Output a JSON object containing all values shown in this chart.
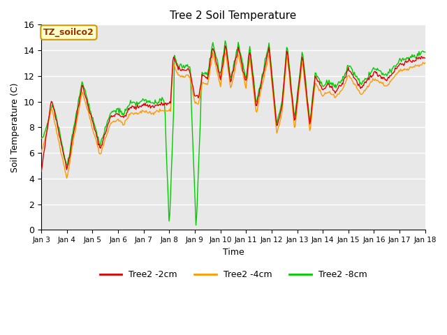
{
  "title": "Tree 2 Soil Temperature",
  "xlabel": "Time",
  "ylabel": "Soil Temperature (C)",
  "ylim": [
    0,
    16
  ],
  "yticks": [
    0,
    2,
    4,
    6,
    8,
    10,
    12,
    14,
    16
  ],
  "annotation_text": "TZ_soilco2",
  "annotation_box_color": "#ffffcc",
  "annotation_border_color": "#cc9900",
  "line_colors": {
    "2cm": "#dd0000",
    "4cm": "#ff9900",
    "8cm": "#00cc00"
  },
  "legend_labels": [
    "Tree2 -2cm",
    "Tree2 -4cm",
    "Tree2 -8cm"
  ],
  "bg_color": "#e8e8e8",
  "x_tick_labels": [
    "Jan 3",
    "Jan 4",
    "Jan 5",
    "Jan 6",
    "Jan 7",
    "Jan 8",
    "Jan 9",
    "Jan 10",
    "Jan 11",
    "Jan 12",
    "Jan 13",
    "Jan 14",
    "Jan 15",
    "Jan 16",
    "Jan 17",
    "Jan 18"
  ],
  "figsize": [
    6.4,
    4.8
  ],
  "dpi": 100
}
